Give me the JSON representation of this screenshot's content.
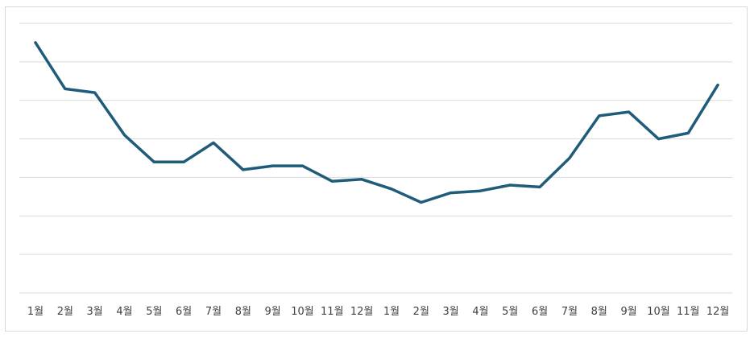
{
  "chart_data": {
    "type": "line",
    "title": "",
    "xlabel": "",
    "ylabel": "",
    "categories": [
      "1월",
      "2월",
      "3월",
      "4월",
      "5월",
      "6월",
      "7월",
      "8월",
      "9월",
      "10월",
      "11월",
      "12월",
      "1월",
      "2월",
      "3월",
      "4월",
      "5월",
      "6월",
      "7월",
      "8월",
      "9월",
      "10월",
      "11월",
      "12월"
    ],
    "series": [
      {
        "values": [
          5.5,
          4.3,
          4.2,
          3.1,
          2.4,
          2.4,
          2.9,
          2.2,
          2.3,
          2.3,
          1.9,
          1.95,
          1.7,
          1.35,
          1.6,
          1.65,
          1.8,
          1.75,
          2.5,
          3.6,
          3.7,
          3.0,
          3.15,
          4.4
        ],
        "color": "#1f5c7a"
      }
    ],
    "ylim": [
      -1,
      6
    ],
    "grid": true,
    "legend": "none",
    "y_gridlines": [
      0,
      1,
      2,
      3,
      4,
      5,
      6
    ]
  }
}
